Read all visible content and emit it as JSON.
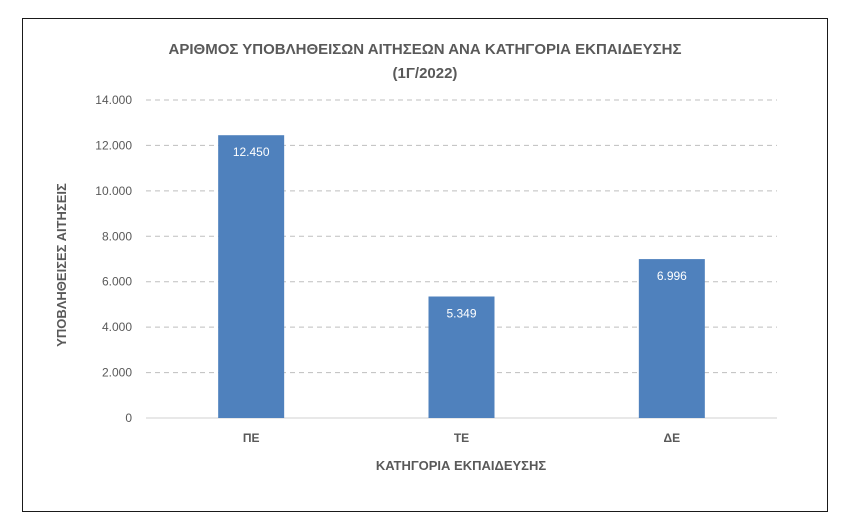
{
  "chart_data": {
    "type": "bar",
    "title_line1": "ΑΡΙΘΜΟΣ ΥΠΟΒΛΗΘΕΙΣΩΝ ΑΙΤΗΣΕΩΝ ΑΝΑ ΚΑΤΗΓΟΡΙΑ ΕΚΠΑΙΔΕΥΣΗΣ",
    "title_line2": "(1Γ/2022)",
    "xlabel": "ΚΑΤΗΓΟΡΙΑ ΕΚΠΑΙΔΕΥΣΗΣ",
    "ylabel": "ΥΠΟΒΛΗΘΕΙΣΕΣ ΑΙΤΗΣΕΙΣ",
    "categories": [
      "ΠΕ",
      "ΤΕ",
      "ΔΕ"
    ],
    "values": [
      12450,
      5349,
      6996
    ],
    "data_labels": [
      "12.450",
      "5.349",
      "6.996"
    ],
    "ylim": [
      0,
      14000
    ],
    "y_ticks": [
      0,
      2000,
      4000,
      6000,
      8000,
      10000,
      12000,
      14000
    ],
    "y_tick_labels": [
      "0",
      "2.000",
      "4.000",
      "6.000",
      "8.000",
      "10.000",
      "12.000",
      "14.000"
    ],
    "grid": "dashed horizontal",
    "legend": "none",
    "bar_color": "#4f81bd",
    "grid_color": "#bfbfbf",
    "text_color": "#595959"
  }
}
